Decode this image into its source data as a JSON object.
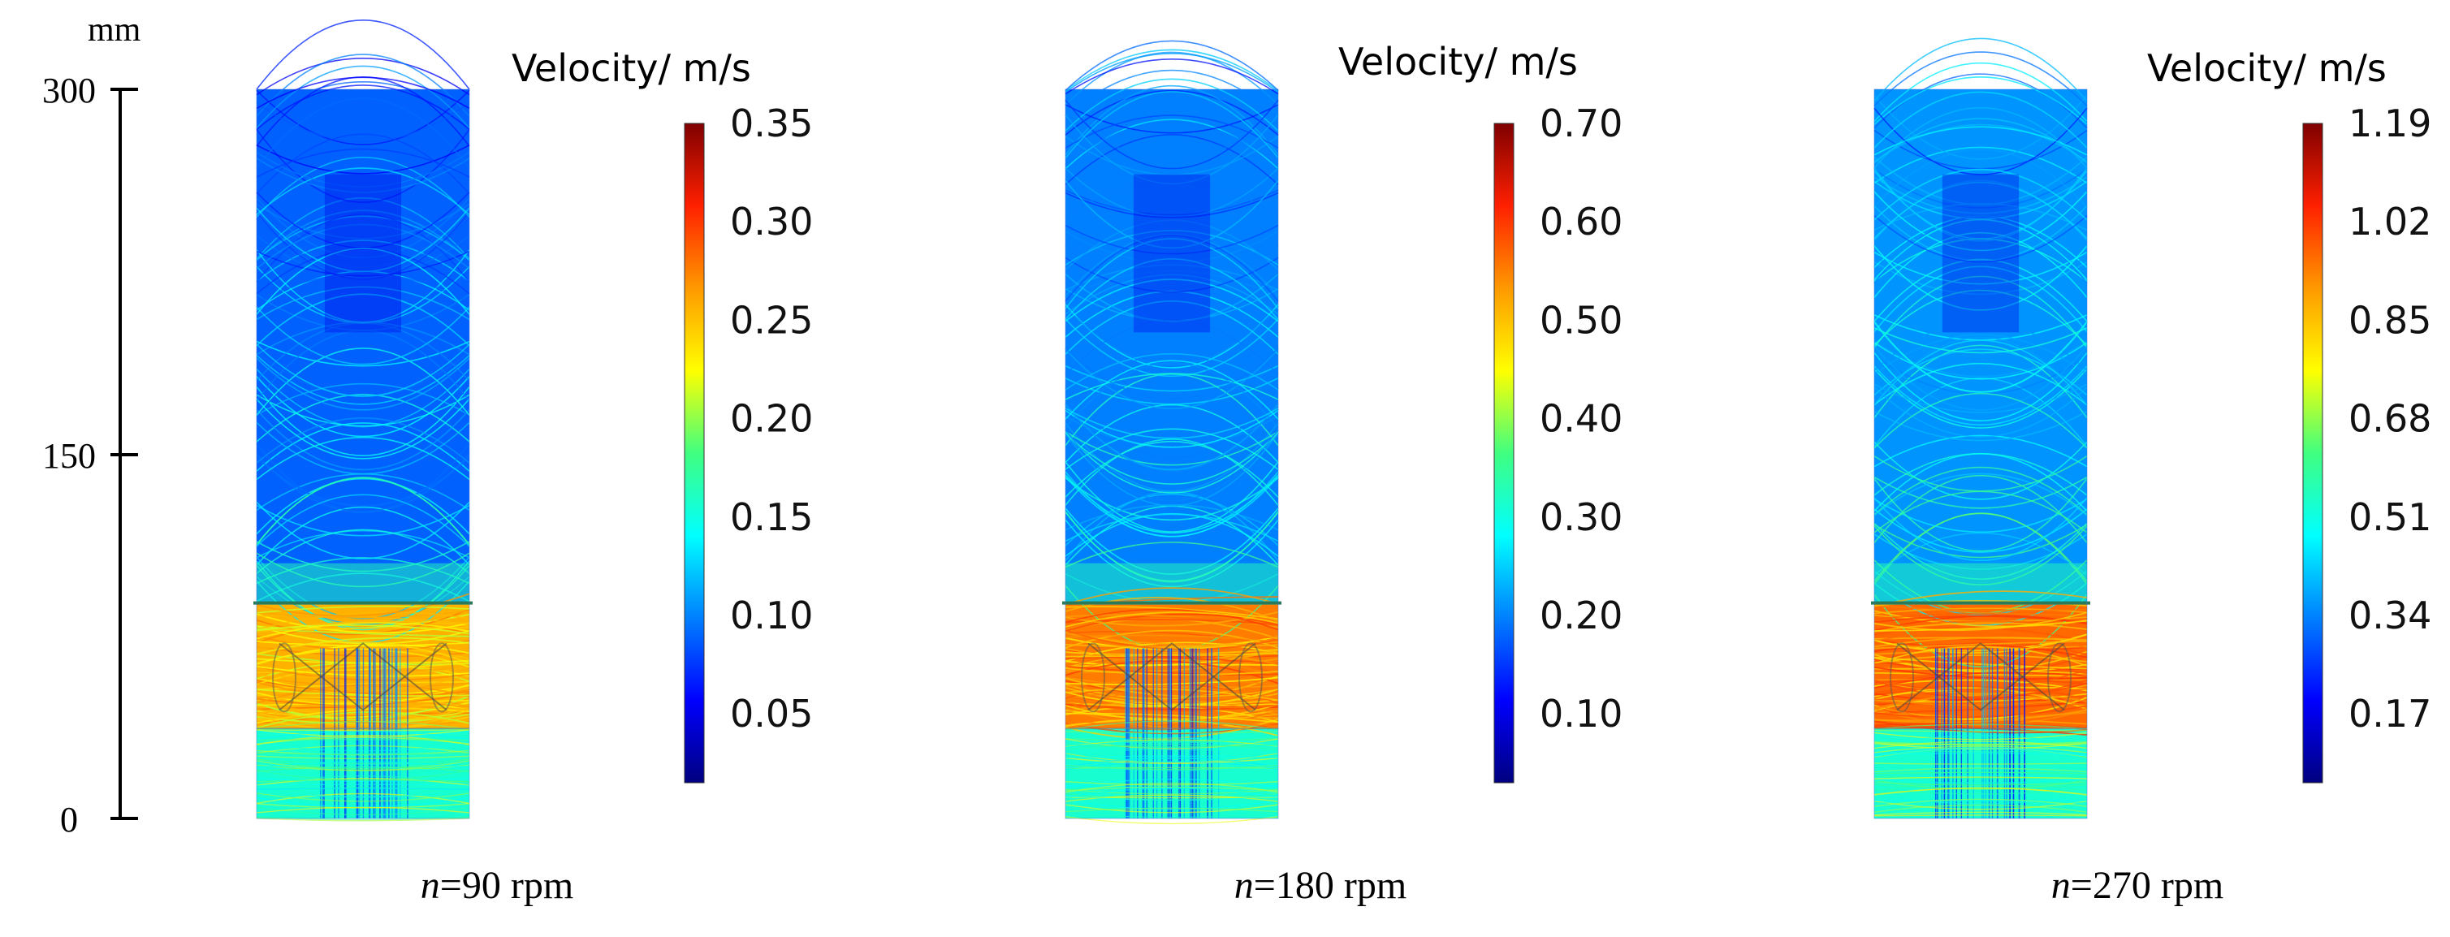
{
  "chart_data": {
    "type": "streamline-panels",
    "axis": {
      "unit": "mm",
      "ticks": [
        0,
        150,
        300
      ],
      "range": [
        0,
        300
      ]
    },
    "colorbar_title": "Velocity/ m/s",
    "colormap": [
      "#00007f",
      "#0000ff",
      "#0080ff",
      "#00ffff",
      "#40ff80",
      "#ffff00",
      "#ff9900",
      "#ff2000",
      "#7f0000"
    ],
    "panels": [
      {
        "label_var": "n",
        "label_rest": "=90 rpm",
        "rpm": 90,
        "colorbar_max": 0.35,
        "colorbar_ticks": [
          "0.35",
          "0.30",
          "0.25",
          "0.20",
          "0.15",
          "0.10",
          "0.05"
        ],
        "colorbar_tick_values": [
          0.35,
          0.3,
          0.25,
          0.2,
          0.15,
          0.1,
          0.05
        ],
        "upper_flow_level": 0.22,
        "impeller_flow_level": 0.72
      },
      {
        "label_var": "n",
        "label_rest": "=180 rpm",
        "rpm": 180,
        "colorbar_max": 0.7,
        "colorbar_ticks": [
          "0.70",
          "0.60",
          "0.50",
          "0.40",
          "0.30",
          "0.20",
          "0.10"
        ],
        "colorbar_tick_values": [
          0.7,
          0.6,
          0.5,
          0.4,
          0.3,
          0.2,
          0.1
        ],
        "upper_flow_level": 0.25,
        "impeller_flow_level": 0.78
      },
      {
        "label_var": "n",
        "label_rest": "=270 rpm",
        "rpm": 270,
        "colorbar_max": 1.19,
        "colorbar_ticks": [
          "1.19",
          "1.02",
          "0.85",
          "0.68",
          "0.51",
          "0.34",
          "0.17"
        ],
        "colorbar_tick_values": [
          1.19,
          1.02,
          0.85,
          0.68,
          0.51,
          0.34,
          0.17
        ],
        "upper_flow_level": 0.27,
        "impeller_flow_level": 0.8
      }
    ]
  }
}
